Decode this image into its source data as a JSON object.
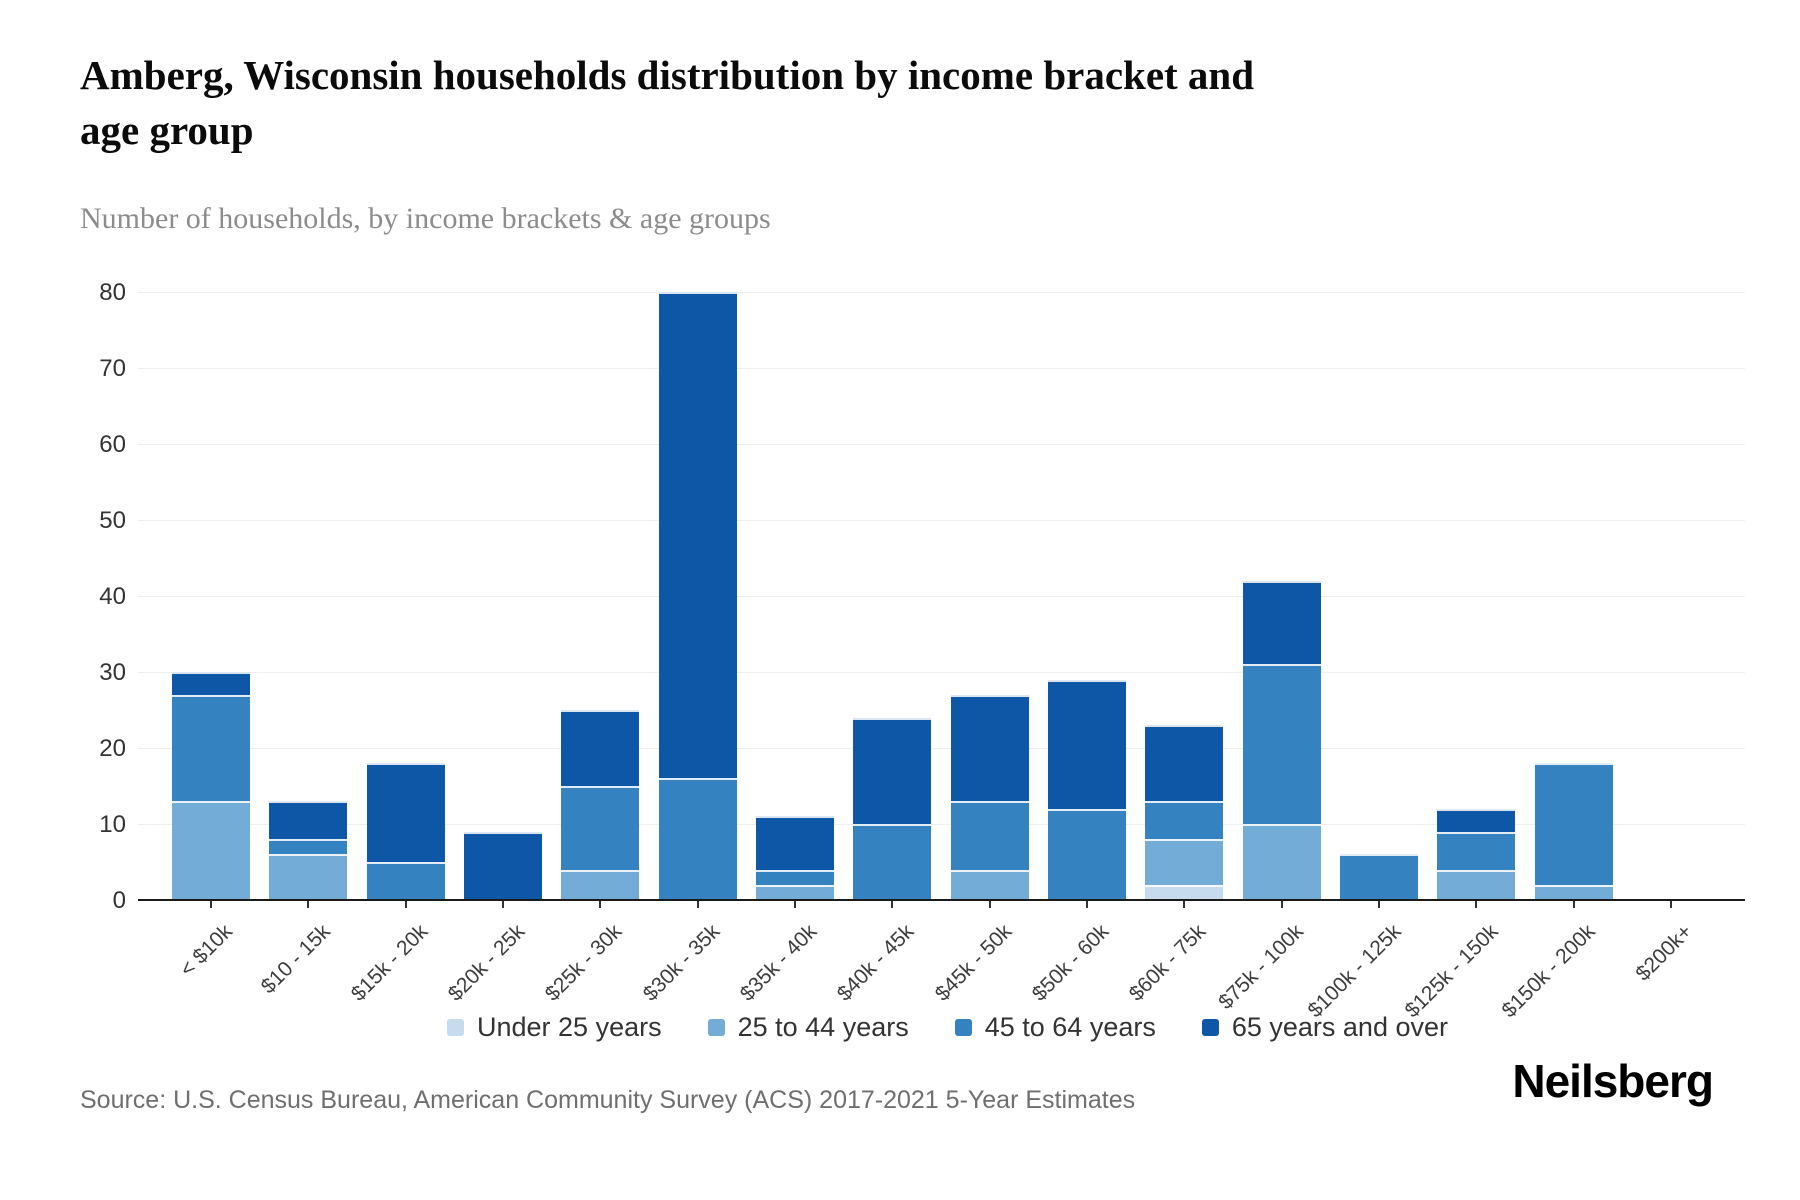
{
  "header": {
    "title": "Amberg, Wisconsin households distribution by income bracket and\nage group",
    "subtitle": "Number of households, by income brackets & age groups"
  },
  "chart_data": {
    "type": "bar",
    "stacked": true,
    "title": "Amberg, Wisconsin households distribution by income bracket and age group",
    "subtitle": "Number of households, by income brackets & age groups",
    "categories": [
      "< $10k",
      "$10 - 15k",
      "$15k - 20k",
      "$20k - 25k",
      "$25k - 30k",
      "$30k - 35k",
      "$35k - 40k",
      "$40k - 45k",
      "$45k - 50k",
      "$50k - 60k",
      "$60k - 75k",
      "$75k - 100k",
      "$100k - 125k",
      "$125k - 150k",
      "$150k - 200k",
      "$200k+"
    ],
    "series": [
      {
        "name": "Under 25 years",
        "color": "#c7dbee",
        "values": [
          0,
          0,
          0,
          0,
          0,
          0,
          0,
          0,
          0,
          0,
          2,
          0,
          0,
          0,
          0,
          0
        ]
      },
      {
        "name": "25 to 44 years",
        "color": "#72acd7",
        "values": [
          13,
          6,
          0,
          0,
          4,
          0,
          2,
          0,
          4,
          0,
          6,
          10,
          0,
          4,
          2,
          0
        ]
      },
      {
        "name": "45 to 64 years",
        "color": "#3582c1",
        "values": [
          14,
          2,
          5,
          0,
          11,
          16,
          2,
          10,
          9,
          12,
          5,
          21,
          6,
          5,
          16,
          0
        ]
      },
      {
        "name": "65 years and over",
        "color": "#0e57a7",
        "values": [
          3,
          5,
          13,
          9,
          10,
          64,
          7,
          14,
          14,
          17,
          10,
          11,
          0,
          3,
          0,
          0
        ]
      }
    ],
    "totals": [
      30,
      13,
      18,
      9,
      25,
      80,
      11,
      24,
      27,
      29,
      23,
      42,
      6,
      12,
      18,
      0
    ],
    "ylim": [
      0,
      80
    ],
    "yticks": [
      0,
      10,
      20,
      30,
      40,
      50,
      60,
      70,
      80
    ],
    "grid": true,
    "legend_position": "bottom",
    "axis_color": "#1b1b1b",
    "gridline_color": "#efefef"
  },
  "footer": {
    "source": "Source: U.S. Census Bureau, American Community Survey (ACS) 2017-2021 5-Year Estimates",
    "brand": "Neilsberg"
  }
}
